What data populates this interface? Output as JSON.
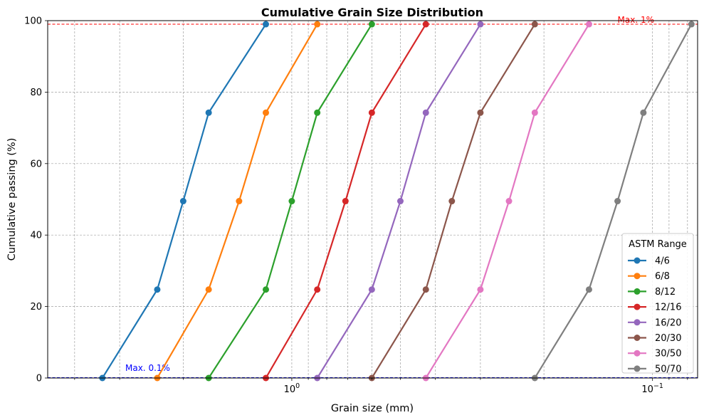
{
  "chart_data": {
    "type": "line",
    "title": "Cumulative Grain Size Distribution",
    "xlabel": "Grain size (mm)",
    "ylabel": "Cumulative passing (%)",
    "x_scale": "log",
    "x_reversed": true,
    "xlim": [
      4.75,
      0.075
    ],
    "ylim": [
      0,
      100
    ],
    "x_tick_labels": [
      {
        "value": 1,
        "base": "10",
        "exp": "0"
      },
      {
        "value": 0.1,
        "base": "10",
        "exp": "−1"
      }
    ],
    "y_ticks": [
      0,
      20,
      40,
      60,
      80,
      100
    ],
    "grid": true,
    "legend": {
      "title": "ASTM Range",
      "position": "bottom-right"
    },
    "series": [
      {
        "name": "4/6",
        "color": "#1f77b4",
        "x": [
          3.35,
          2.36,
          2.0,
          1.7,
          1.18
        ],
        "y": [
          0,
          24.75,
          49.5,
          74.25,
          99
        ]
      },
      {
        "name": "6/8",
        "color": "#ff7f0e",
        "x": [
          2.36,
          1.7,
          1.4,
          1.18,
          0.85
        ],
        "y": [
          0,
          24.75,
          49.5,
          74.25,
          99
        ]
      },
      {
        "name": "8/12",
        "color": "#2ca02c",
        "x": [
          1.7,
          1.18,
          1.0,
          0.85,
          0.6
        ],
        "y": [
          0,
          24.75,
          49.5,
          74.25,
          99
        ]
      },
      {
        "name": "12/16",
        "color": "#d62728",
        "x": [
          1.18,
          0.85,
          0.71,
          0.6,
          0.425
        ],
        "y": [
          0,
          24.75,
          49.5,
          74.25,
          99
        ]
      },
      {
        "name": "16/20",
        "color": "#9467bd",
        "x": [
          0.85,
          0.6,
          0.5,
          0.425,
          0.3
        ],
        "y": [
          0,
          24.75,
          49.5,
          74.25,
          99
        ]
      },
      {
        "name": "20/30",
        "color": "#8c564b",
        "x": [
          0.6,
          0.425,
          0.36,
          0.3,
          0.212
        ],
        "y": [
          0,
          24.75,
          49.5,
          74.25,
          99
        ]
      },
      {
        "name": "30/50",
        "color": "#e377c2",
        "x": [
          0.425,
          0.3,
          0.25,
          0.212,
          0.15
        ],
        "y": [
          0,
          24.75,
          49.5,
          74.25,
          99
        ]
      },
      {
        "name": "50/70",
        "color": "#7f7f7f",
        "x": [
          0.212,
          0.15,
          0.125,
          0.106,
          0.078
        ],
        "y": [
          0,
          24.75,
          49.5,
          74.25,
          99
        ]
      }
    ],
    "reference_lines": [
      {
        "y": 99,
        "color": "#ff0000",
        "style": "dashed",
        "label": "Max. 1%"
      },
      {
        "y": 0.1,
        "color": "#0000ff",
        "style": "dashed",
        "label": "Max. 0.1%"
      }
    ]
  }
}
